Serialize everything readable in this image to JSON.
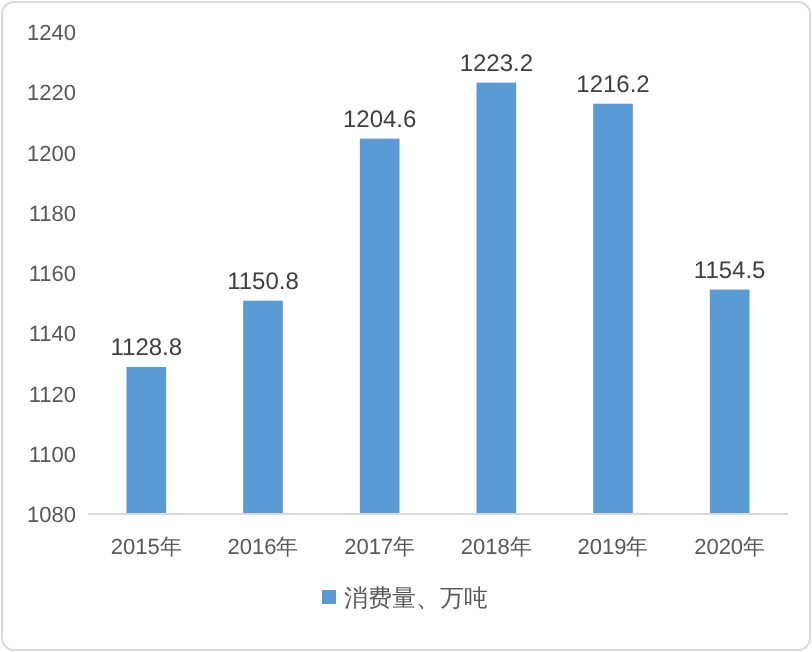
{
  "chart_data": {
    "type": "bar",
    "categories": [
      "2015年",
      "2016年",
      "2017年",
      "2018年",
      "2019年",
      "2020年"
    ],
    "series": [
      {
        "name": "消费量、万吨",
        "color": "#5b9bd5",
        "values": [
          1128.8,
          1150.8,
          1204.6,
          1223.2,
          1216.2,
          1154.5
        ]
      }
    ],
    "ylim": [
      1080,
      1240
    ],
    "yticks": [
      1080,
      1100,
      1120,
      1140,
      1160,
      1180,
      1200,
      1220,
      1240
    ],
    "data_labels": true,
    "legend": "bottom"
  }
}
